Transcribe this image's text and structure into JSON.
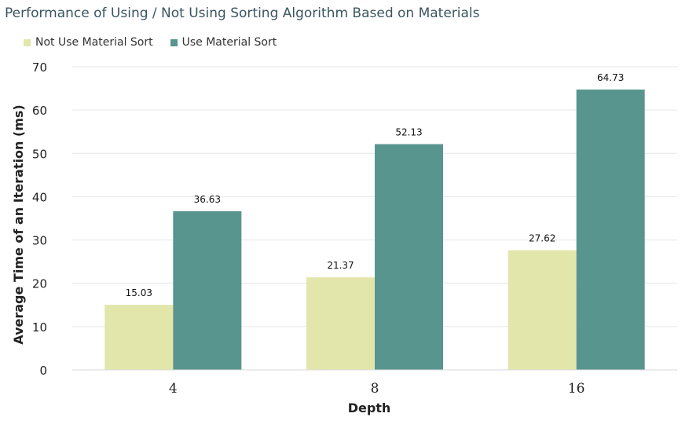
{
  "chart_data": {
    "type": "bar",
    "title": "Performance of Using / Not Using Sorting Algorithm Based on Materials",
    "xlabel": "Depth",
    "ylabel": "Average Time of an Iteration (ms)",
    "categories": [
      "4",
      "8",
      "16"
    ],
    "series": [
      {
        "name": "Not Use Material Sort",
        "color": "#e2e6ab",
        "values": [
          15.03,
          21.37,
          27.62
        ]
      },
      {
        "name": "Use Material Sort",
        "color": "#58958f",
        "values": [
          36.63,
          52.13,
          64.73
        ]
      }
    ],
    "ylim": [
      0,
      70
    ],
    "yticks": [
      0,
      10,
      20,
      30,
      40,
      50,
      60,
      70
    ],
    "grid": true,
    "legend_position": "top-left"
  }
}
